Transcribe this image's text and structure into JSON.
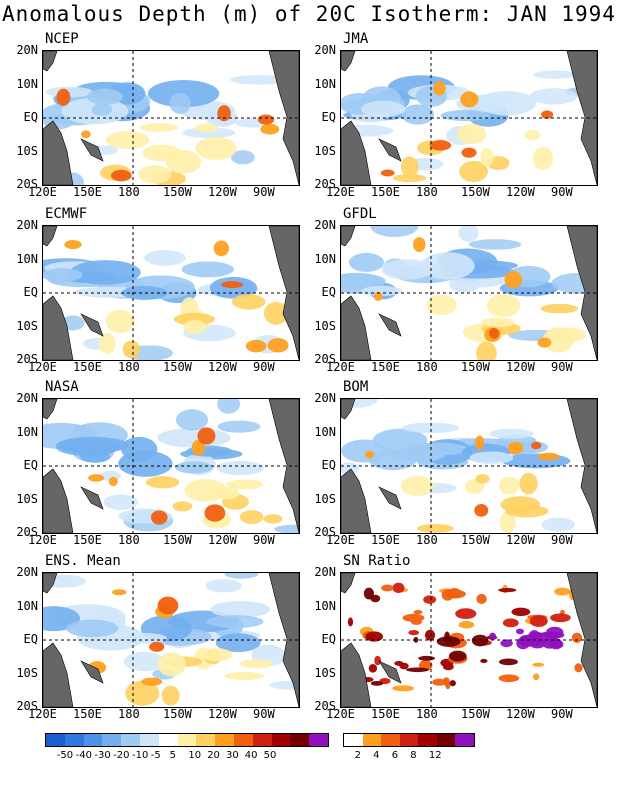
{
  "title": "Anomalous Depth (m) of 20C Isotherm: JAN 1994",
  "panels": [
    {
      "name": "NCEP"
    },
    {
      "name": "JMA"
    },
    {
      "name": "ECMWF"
    },
    {
      "name": "GFDL"
    },
    {
      "name": "NASA"
    },
    {
      "name": "BOM"
    },
    {
      "name": "ENS. Mean"
    },
    {
      "name": "SN Ratio"
    }
  ],
  "lat_labels": [
    "20N",
    "10N",
    "EQ",
    "10S",
    "20S"
  ],
  "lon_labels": [
    "120E",
    "150E",
    "180",
    "150W",
    "120W",
    "90W"
  ],
  "colorbar_anomaly": {
    "colors": [
      "#1a5fd0",
      "#2f78e0",
      "#4b92ea",
      "#73afef",
      "#9fcaf4",
      "#cfe6fa",
      "#ffffff",
      "#fff0a8",
      "#ffd060",
      "#ffa020",
      "#f06010",
      "#d02010",
      "#a00000",
      "#700000",
      "#9010c0"
    ],
    "labels": [
      "-50",
      "-40",
      "-30",
      "-20",
      "-10",
      "-5",
      "5",
      "10",
      "20",
      "30",
      "40",
      "50"
    ]
  },
  "colorbar_sn": {
    "colors": [
      "#ffffff",
      "#ffa020",
      "#f06010",
      "#d02010",
      "#a00000",
      "#700000",
      "#9010c0"
    ],
    "labels": [
      "2",
      "4",
      "6",
      "8",
      "12"
    ]
  }
}
